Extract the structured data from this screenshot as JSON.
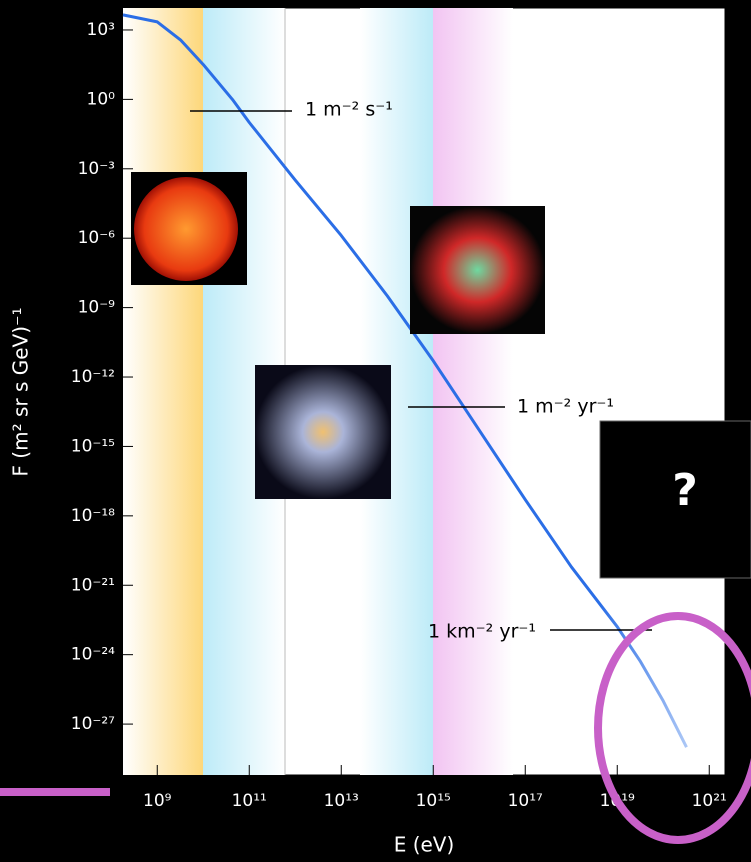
{
  "chart_data": {
    "type": "line",
    "x_label": "E (eV)",
    "y_label": "F (m² sr s GeV)⁻¹",
    "x_log": true,
    "y_log": true,
    "xlim": [
      180000000.0,
      2.2e+21
    ],
    "ylim": [
      8900.0,
      6.3e-30
    ],
    "xticks": [
      {
        "value": 1000000000.0,
        "label": "10⁹"
      },
      {
        "value": 100000000000.0,
        "label": "10¹¹"
      },
      {
        "value": 10000000000000.0,
        "label": "10¹³"
      },
      {
        "value": 1000000000000000.0,
        "label": "10¹⁵"
      },
      {
        "value": 1e+17,
        "label": "10¹⁷"
      },
      {
        "value": 1e+19,
        "label": "10¹⁹"
      },
      {
        "value": 1e+21,
        "label": "10²¹"
      }
    ],
    "yticks": [
      {
        "value": 1000,
        "label": "10³"
      },
      {
        "value": 1,
        "label": "10⁰"
      },
      {
        "value": 0.001,
        "label": "10⁻³"
      },
      {
        "value": 1e-06,
        "label": "10⁻⁶"
      },
      {
        "value": 1e-09,
        "label": "10⁻⁹"
      },
      {
        "value": 1e-12,
        "label": "10⁻¹²"
      },
      {
        "value": 1e-15,
        "label": "10⁻¹⁵"
      },
      {
        "value": 1e-18,
        "label": "10⁻¹⁸"
      },
      {
        "value": 1e-21,
        "label": "10⁻²¹"
      },
      {
        "value": 1e-24,
        "label": "10⁻²⁴"
      },
      {
        "value": 1e-27,
        "label": "10⁻²⁷"
      }
    ],
    "x": [
      180000000.0,
      1000000000.0,
      3200000000.0,
      10000000000.0,
      43000000000.0,
      100000000000.0,
      1000000000000.0,
      10000000000000.0,
      100000000000000.0,
      1000000000000000.0,
      1e+16,
      1e+17,
      1e+18,
      1e+19,
      3.2e+19,
      1e+20,
      3.2e+20
    ],
    "series": [
      {
        "color": "#2b6ee6",
        "values": [
          4467,
          2239,
          372,
          32,
          1,
          0.1,
          0.00032,
          1.3e-06,
          3.2e-09,
          5e-12,
          5e-15,
          5e-18,
          6.3e-21,
          1.6e-23,
          5e-25,
          1e-26,
          1e-28
        ]
      }
    ],
    "annotations": [
      "1 m⁻² s⁻¹",
      "1 m⁻² yr⁻¹",
      "1 km⁻² yr⁻¹"
    ],
    "mystery_label": "?"
  }
}
